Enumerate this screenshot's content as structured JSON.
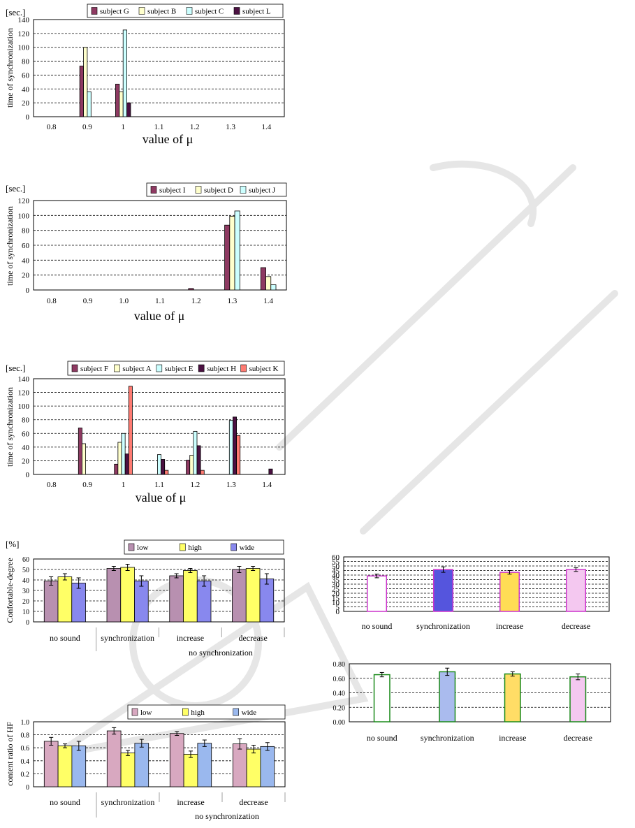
{
  "chart_data": [
    {
      "id": "c1",
      "type": "bar",
      "unit_label": "[sec.]",
      "ylabel": "time of synchronization",
      "xlabel": "value of  μ",
      "ylim": [
        0,
        140
      ],
      "yticks": [
        0,
        20,
        40,
        60,
        80,
        100,
        120,
        140
      ],
      "categories": [
        "0.8",
        "0.9",
        "1",
        "1.1",
        "1.2",
        "1.3",
        "1.4"
      ],
      "series": [
        {
          "name": "subject G",
          "color": "#8e3a62",
          "values": [
            0,
            73,
            47,
            0,
            0,
            0,
            0
          ]
        },
        {
          "name": "subject B",
          "color": "#ffffcc",
          "values": [
            0,
            100,
            36,
            0,
            0,
            0,
            0
          ]
        },
        {
          "name": "subject C",
          "color": "#ccffff",
          "values": [
            0,
            36,
            125,
            0,
            0,
            0,
            0
          ]
        },
        {
          "name": "subject L",
          "color": "#4b1142",
          "values": [
            0,
            0,
            20,
            0,
            0,
            0,
            0
          ]
        }
      ]
    },
    {
      "id": "c2",
      "type": "bar",
      "unit_label": "[sec.]",
      "ylabel": "time of synchronization",
      "xlabel": "value of  μ",
      "ylim": [
        0,
        120
      ],
      "yticks": [
        0,
        20,
        40,
        60,
        80,
        100,
        120
      ],
      "categories": [
        "0.8",
        "0.9",
        "1.0",
        "1.1",
        "1.2",
        "1.3",
        "1.4"
      ],
      "series": [
        {
          "name": "subject I",
          "color": "#8e3a62",
          "values": [
            0,
            0,
            0,
            0,
            2,
            87,
            30
          ]
        },
        {
          "name": "subject D",
          "color": "#ffffcc",
          "values": [
            0,
            0,
            0,
            0,
            0,
            99,
            18
          ]
        },
        {
          "name": "subject J",
          "color": "#ccffff",
          "values": [
            0,
            0,
            0,
            0,
            0,
            106,
            7
          ]
        }
      ]
    },
    {
      "id": "c3",
      "type": "bar",
      "unit_label": "[sec.]",
      "ylabel": "time of synchronization",
      "xlabel": "value of  μ",
      "ylim": [
        0,
        140
      ],
      "yticks": [
        0,
        20,
        40,
        60,
        80,
        100,
        120,
        140
      ],
      "categories": [
        "0.8",
        "0.9",
        "1",
        "1.1",
        "1.2",
        "1.3",
        "1.4"
      ],
      "series": [
        {
          "name": "subject F",
          "color": "#8e3a62",
          "values": [
            0,
            68,
            15,
            0,
            21,
            0,
            0
          ]
        },
        {
          "name": "subject A",
          "color": "#ffffcc",
          "values": [
            0,
            45,
            47,
            0,
            28,
            0,
            0
          ]
        },
        {
          "name": "subject E",
          "color": "#ccffff",
          "values": [
            0,
            0,
            60,
            29,
            63,
            79,
            0
          ]
        },
        {
          "name": "subject H",
          "color": "#4b1142",
          "values": [
            0,
            0,
            30,
            22,
            42,
            84,
            8
          ]
        },
        {
          "name": "subject K",
          "color": "#ff7b72",
          "values": [
            0,
            0,
            129,
            6,
            6,
            57,
            0
          ]
        }
      ]
    },
    {
      "id": "c4",
      "type": "bar",
      "unit_label": "[%]",
      "ylabel": "Confortable-degree",
      "ylim": [
        0,
        60
      ],
      "yticks": [
        0,
        10,
        20,
        30,
        40,
        50,
        60
      ],
      "categories": [
        "no sound",
        "synchronization",
        "increase",
        "decrease"
      ],
      "group_label": "no synchronization",
      "series": [
        {
          "name": "low",
          "color": "#b890b0",
          "values": [
            39,
            51,
            44,
            50
          ],
          "errors": [
            4,
            2,
            2,
            3
          ]
        },
        {
          "name": "high",
          "color": "#ffff66",
          "values": [
            43,
            52,
            49,
            51
          ],
          "errors": [
            3,
            3,
            2,
            2
          ]
        },
        {
          "name": "wide",
          "color": "#8888ee",
          "values": [
            37,
            39,
            39,
            41
          ],
          "errors": [
            5,
            5,
            5,
            5
          ]
        }
      ]
    },
    {
      "id": "c5",
      "type": "bar",
      "ylabel": "content ratio of HF",
      "ylim": [
        0,
        1.0
      ],
      "yticks": [
        "0",
        "0.2",
        "0.4",
        "0.6",
        "0.8",
        "1.0"
      ],
      "categories": [
        "no sound",
        "synchronization",
        "increase",
        "decrease"
      ],
      "group_label": "no synchronization",
      "series": [
        {
          "name": "low",
          "color": "#d8a8c0",
          "values": [
            0.7,
            0.86,
            0.82,
            0.66
          ],
          "errors": [
            0.06,
            0.05,
            0.03,
            0.08
          ]
        },
        {
          "name": "high",
          "color": "#ffff66",
          "values": [
            0.63,
            0.52,
            0.5,
            0.58
          ],
          "errors": [
            0.03,
            0.04,
            0.05,
            0.06
          ]
        },
        {
          "name": "wide",
          "color": "#9ab8ee",
          "values": [
            0.63,
            0.67,
            0.67,
            0.62
          ],
          "errors": [
            0.07,
            0.06,
            0.05,
            0.06
          ]
        }
      ]
    },
    {
      "id": "c6",
      "type": "bar",
      "ylim": [
        0,
        60
      ],
      "yticks": [
        "0",
        "5",
        "10",
        "15",
        "20",
        "25",
        "30",
        "35",
        "40",
        "45",
        "50",
        "55",
        "60"
      ],
      "categories": [
        "no sound",
        "synchronization",
        "increase",
        "decrease"
      ],
      "series": [
        {
          "name": "",
          "values": [
            39,
            46,
            43,
            46
          ],
          "errors": [
            2,
            3,
            2,
            2
          ],
          "colors": [
            "#ffffff",
            "#5555dd",
            "#ffdd55",
            "#f4c8f0"
          ],
          "strokes": [
            "#cc33cc",
            "#cc33cc",
            "#cc33cc",
            "#cc33cc"
          ]
        }
      ]
    },
    {
      "id": "c7",
      "type": "bar",
      "ylim": [
        0,
        0.8
      ],
      "yticks": [
        "0.00",
        "0.20",
        "0.40",
        "0.60",
        "0.80"
      ],
      "categories": [
        "no sound",
        "synchronization",
        "increase",
        "decrease"
      ],
      "series": [
        {
          "name": "",
          "values": [
            0.65,
            0.69,
            0.66,
            0.62
          ],
          "errors": [
            0.03,
            0.05,
            0.03,
            0.04
          ],
          "colors": [
            "#ffffff",
            "#aabbee",
            "#ffdd66",
            "#f4c8f0"
          ],
          "strokes": [
            "#1a8a1a",
            "#1a8a1a",
            "#1a8a1a",
            "#1a8a1a"
          ]
        }
      ]
    }
  ]
}
